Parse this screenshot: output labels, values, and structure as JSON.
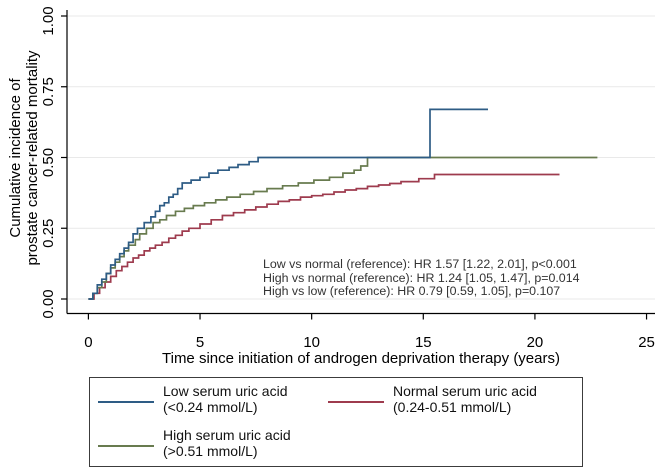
{
  "chart_data": {
    "type": "line",
    "subtype": "step-cumulative-incidence",
    "title": "",
    "xlabel": "Time since initiation of androgen deprivation therapy (years)",
    "ylabel_lines": [
      "Cumulative incidence of",
      "prostate cancer-related mortality"
    ],
    "xlim": [
      0,
      25
    ],
    "ylim": [
      0,
      1
    ],
    "xticks": {
      "values": [
        0,
        5,
        10,
        15,
        20,
        25
      ],
      "labels": [
        "0",
        "5",
        "10",
        "15",
        "20",
        "25"
      ]
    },
    "yticks": {
      "values": [
        0,
        0.25,
        0.5,
        0.75,
        1
      ],
      "labels": [
        "0.00",
        "0.25",
        "0.50",
        "0.75",
        "1.00"
      ]
    },
    "grid": "horizontal",
    "grid_color": "#e9e9e9",
    "axis_color": "#000000",
    "series": [
      {
        "name": "Normal serum uric acid (0.24-0.51 mmol/L)",
        "color": "#9e3b4e",
        "steps": [
          [
            0,
            0
          ],
          [
            0.25,
            0.02
          ],
          [
            0.5,
            0.04
          ],
          [
            0.75,
            0.06
          ],
          [
            1.0,
            0.08
          ],
          [
            1.25,
            0.1
          ],
          [
            1.5,
            0.115
          ],
          [
            1.75,
            0.13
          ],
          [
            2.0,
            0.145
          ],
          [
            2.25,
            0.155
          ],
          [
            2.5,
            0.17
          ],
          [
            2.75,
            0.18
          ],
          [
            3.0,
            0.19
          ],
          [
            3.3,
            0.2
          ],
          [
            3.6,
            0.215
          ],
          [
            3.9,
            0.225
          ],
          [
            4.2,
            0.24
          ],
          [
            4.5,
            0.25
          ],
          [
            5.0,
            0.265
          ],
          [
            5.5,
            0.28
          ],
          [
            6.0,
            0.295
          ],
          [
            6.5,
            0.305
          ],
          [
            7.0,
            0.315
          ],
          [
            7.5,
            0.325
          ],
          [
            8.0,
            0.335
          ],
          [
            8.5,
            0.345
          ],
          [
            9.0,
            0.35
          ],
          [
            9.5,
            0.36
          ],
          [
            10.0,
            0.365
          ],
          [
            10.5,
            0.37
          ],
          [
            11.0,
            0.378
          ],
          [
            11.5,
            0.385
          ],
          [
            12.0,
            0.39
          ],
          [
            12.5,
            0.398
          ],
          [
            13.0,
            0.403
          ],
          [
            13.5,
            0.408
          ],
          [
            14.0,
            0.415
          ],
          [
            14.8,
            0.425
          ],
          [
            15.5,
            0.44
          ],
          [
            21.1,
            0.44
          ]
        ]
      },
      {
        "name": "High serum uric acid (>0.51 mmol/L)",
        "color": "#687b4f",
        "steps": [
          [
            0,
            0
          ],
          [
            0.2,
            0.02
          ],
          [
            0.4,
            0.04
          ],
          [
            0.6,
            0.06
          ],
          [
            0.8,
            0.09
          ],
          [
            1.0,
            0.11
          ],
          [
            1.2,
            0.13
          ],
          [
            1.4,
            0.15
          ],
          [
            1.6,
            0.17
          ],
          [
            1.8,
            0.19
          ],
          [
            2.1,
            0.21
          ],
          [
            2.3,
            0.23
          ],
          [
            2.6,
            0.25
          ],
          [
            2.9,
            0.27
          ],
          [
            3.2,
            0.28
          ],
          [
            3.5,
            0.295
          ],
          [
            3.9,
            0.31
          ],
          [
            4.3,
            0.32
          ],
          [
            4.7,
            0.33
          ],
          [
            5.2,
            0.34
          ],
          [
            5.7,
            0.35
          ],
          [
            6.2,
            0.36
          ],
          [
            6.8,
            0.37
          ],
          [
            7.4,
            0.38
          ],
          [
            8.0,
            0.39
          ],
          [
            8.7,
            0.4
          ],
          [
            9.4,
            0.41
          ],
          [
            10.1,
            0.42
          ],
          [
            10.8,
            0.43
          ],
          [
            11.4,
            0.445
          ],
          [
            11.9,
            0.455
          ],
          [
            12.2,
            0.47
          ],
          [
            12.5,
            0.5
          ],
          [
            22.8,
            0.5
          ]
        ]
      },
      {
        "name": "Low serum uric acid (<0.24 mmol/L)",
        "color": "#2e5c85",
        "steps": [
          [
            0,
            0
          ],
          [
            0.2,
            0.02
          ],
          [
            0.4,
            0.05
          ],
          [
            0.6,
            0.07
          ],
          [
            0.8,
            0.09
          ],
          [
            1.0,
            0.12
          ],
          [
            1.2,
            0.14
          ],
          [
            1.4,
            0.16
          ],
          [
            1.6,
            0.18
          ],
          [
            1.8,
            0.2
          ],
          [
            2.0,
            0.23
          ],
          [
            2.2,
            0.25
          ],
          [
            2.5,
            0.27
          ],
          [
            2.8,
            0.29
          ],
          [
            3.0,
            0.31
          ],
          [
            3.2,
            0.33
          ],
          [
            3.4,
            0.34
          ],
          [
            3.6,
            0.36
          ],
          [
            3.8,
            0.37
          ],
          [
            4.0,
            0.39
          ],
          [
            4.2,
            0.41
          ],
          [
            4.6,
            0.42
          ],
          [
            5.0,
            0.43
          ],
          [
            5.4,
            0.445
          ],
          [
            5.8,
            0.455
          ],
          [
            6.3,
            0.465
          ],
          [
            6.7,
            0.475
          ],
          [
            7.2,
            0.485
          ],
          [
            7.6,
            0.5
          ],
          [
            15.3,
            0.67
          ],
          [
            17.9,
            0.67
          ]
        ]
      }
    ],
    "annotation": {
      "lines": [
        "Low vs normal (reference): HR 1.57 [1.22, 2.01], p<0.001",
        "High vs normal (reference): HR 1.24 [1.05, 1.47], p=0.014",
        "High vs low (reference): HR 0.79 [0.59, 1.05], p=0.107"
      ]
    },
    "legend_position": "bottom"
  },
  "legend": {
    "items": [
      {
        "label_line1": "Low serum uric acid",
        "label_line2": "(<0.24 mmol/L)",
        "color": "#2e5c85"
      },
      {
        "label_line1": "High serum uric acid",
        "label_line2": "(>0.51 mmol/L)",
        "color": "#687b4f"
      },
      {
        "label_line1": "Normal serum uric acid",
        "label_line2": "(0.24-0.51 mmol/L)",
        "color": "#9e3b4e"
      }
    ]
  }
}
